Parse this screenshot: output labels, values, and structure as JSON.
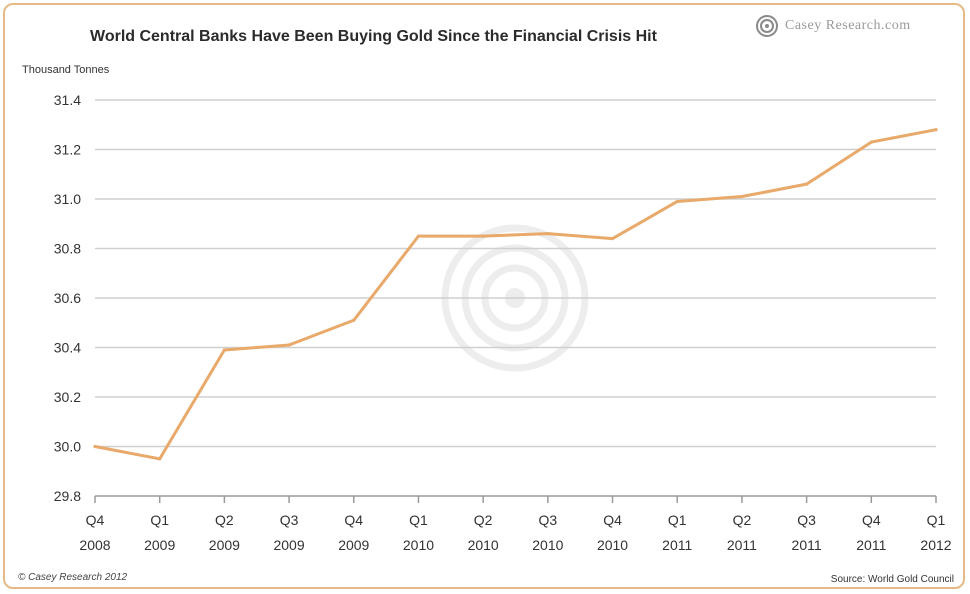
{
  "header": {
    "title": "World Central Banks Have Been Buying Gold Since the Financial Crisis Hit",
    "brand": "Casey Research.com"
  },
  "footer": {
    "copyright": "© Casey Research 2012",
    "source": "Source: World Gold Council"
  },
  "colors": {
    "line": "#e8a96a",
    "grid": "#cfcfcf",
    "frame": "#e7b987"
  },
  "chart_data": {
    "type": "line",
    "title": "World Central Banks Have Been Buying Gold Since the Financial Crisis Hit",
    "ylabel": "Thousand Tonnes",
    "xlabel": "",
    "ylim": [
      29.8,
      31.4
    ],
    "yticks": [
      "29.8",
      "30.0",
      "30.2",
      "30.4",
      "30.6",
      "30.8",
      "31.0",
      "31.2",
      "31.4"
    ],
    "grid": true,
    "categories": [
      [
        "Q4",
        "2008"
      ],
      [
        "Q1",
        "2009"
      ],
      [
        "Q2",
        "2009"
      ],
      [
        "Q3",
        "2009"
      ],
      [
        "Q4",
        "2009"
      ],
      [
        "Q1",
        "2010"
      ],
      [
        "Q2",
        "2010"
      ],
      [
        "Q3",
        "2010"
      ],
      [
        "Q4",
        "2010"
      ],
      [
        "Q1",
        "2011"
      ],
      [
        "Q2",
        "2011"
      ],
      [
        "Q3",
        "2011"
      ],
      [
        "Q4",
        "2011"
      ],
      [
        "Q1",
        "2012"
      ]
    ],
    "series": [
      {
        "values": [
          30.0,
          29.95,
          30.39,
          30.41,
          30.51,
          30.85,
          30.85,
          30.86,
          30.84,
          30.99,
          31.01,
          31.06,
          31.23,
          31.28
        ]
      }
    ]
  }
}
